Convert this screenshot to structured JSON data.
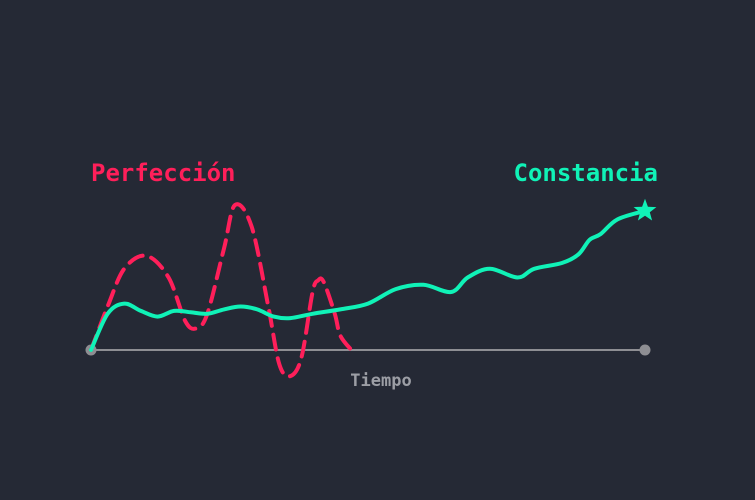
{
  "chart_data": {
    "type": "line",
    "xlabel": "Tiempo",
    "ylabel": "",
    "grid": false,
    "legend": "none",
    "xlim": [
      0,
      100
    ],
    "ylim": [
      -0.2,
      1.0
    ],
    "colors": {
      "background": "#252935",
      "perfeccion": "#FF1F5A",
      "constancia": "#10F2B7",
      "axis": "#8E8E93",
      "xlabel": "#9C9EA5"
    },
    "series": [
      {
        "name": "Perfección",
        "style": "dashed",
        "x": [
          0,
          3,
          6,
          10,
          14,
          17,
          19,
          21,
          24,
          26,
          29,
          32,
          34,
          36,
          38,
          40,
          41,
          42,
          44,
          45,
          47
        ],
        "y": [
          0.0,
          0.3,
          0.56,
          0.65,
          0.5,
          0.2,
          0.15,
          0.25,
          0.7,
          1.0,
          0.85,
          0.3,
          -0.1,
          -0.18,
          -0.05,
          0.4,
          0.48,
          0.47,
          0.25,
          0.1,
          0.0
        ]
      },
      {
        "name": "Constancia",
        "style": "solid",
        "end_marker": "star",
        "x": [
          0,
          3,
          6,
          9,
          12,
          15,
          18,
          21,
          24,
          27,
          30,
          33,
          36,
          40,
          45,
          50,
          55,
          60,
          65,
          68,
          72,
          77,
          80,
          85,
          88,
          90,
          92,
          95,
          100
        ],
        "y": [
          0.0,
          0.25,
          0.32,
          0.27,
          0.23,
          0.27,
          0.26,
          0.25,
          0.28,
          0.3,
          0.28,
          0.23,
          0.22,
          0.25,
          0.28,
          0.32,
          0.42,
          0.45,
          0.4,
          0.5,
          0.56,
          0.5,
          0.56,
          0.6,
          0.66,
          0.76,
          0.8,
          0.9,
          0.96
        ]
      }
    ]
  }
}
